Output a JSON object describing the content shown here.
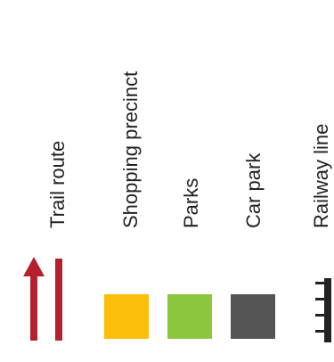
{
  "legend": {
    "items": [
      {
        "label": "Trail route",
        "icon": "trail-route-arrow-icon",
        "color": "#b5202e"
      },
      {
        "label": "Shopping precinct",
        "icon": "swatch",
        "color": "#fbbf0a"
      },
      {
        "label": "Parks",
        "icon": "swatch",
        "color": "#8cc63f"
      },
      {
        "label": "Car park",
        "icon": "swatch",
        "color": "#555555"
      },
      {
        "label": "Railway line",
        "icon": "railway-line-icon",
        "color": "#222222"
      }
    ]
  }
}
